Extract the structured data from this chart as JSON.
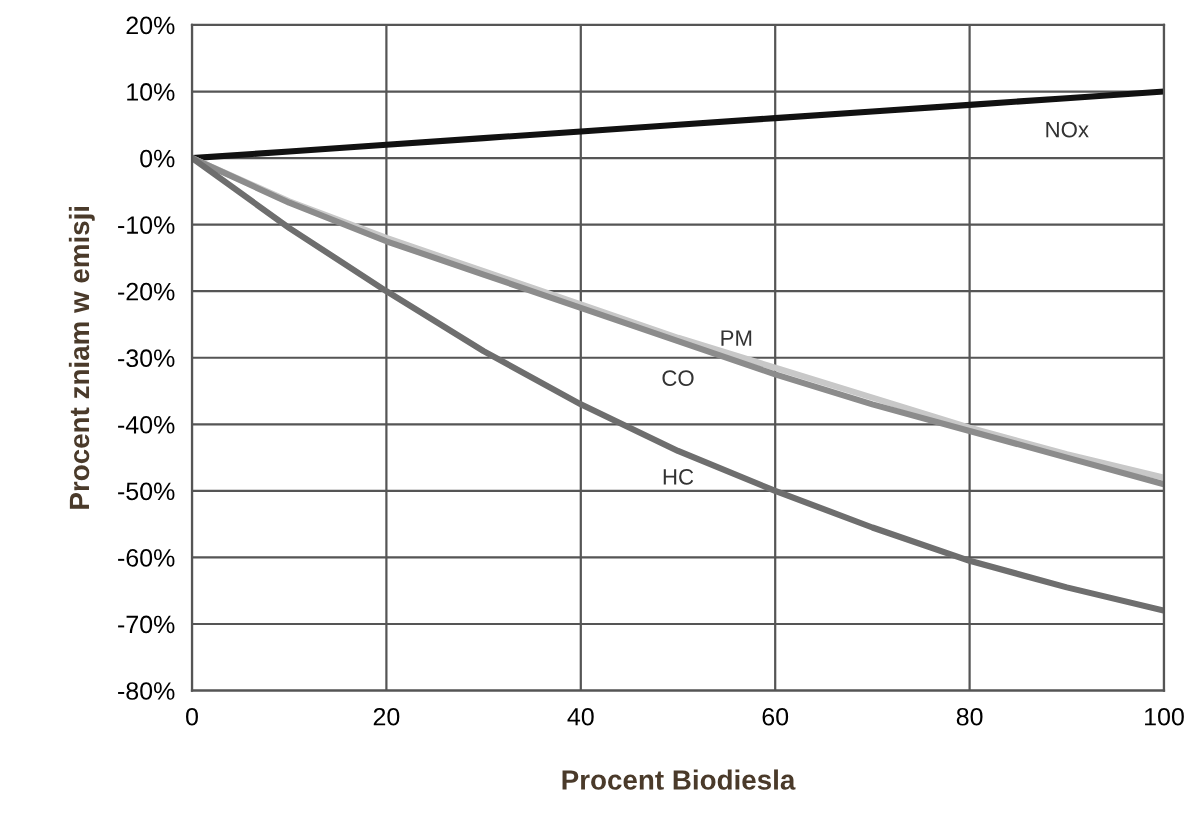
{
  "chart_data": {
    "type": "line",
    "xlabel": "Procent Biodiesla",
    "ylabel": "Procent zniam w emisji",
    "x": [
      0,
      10,
      20,
      30,
      40,
      50,
      60,
      70,
      80,
      90,
      100
    ],
    "series": [
      {
        "name": "NOx",
        "color": "#111111",
        "values": [
          0,
          1,
          2,
          3,
          4,
          5,
          6,
          7,
          8,
          9,
          10
        ]
      },
      {
        "name": "PM",
        "color": "#c8c8c8",
        "values": [
          0,
          -6.5,
          -12,
          -17,
          -22,
          -27,
          -31.5,
          -36,
          -40.5,
          -44.5,
          -48
        ]
      },
      {
        "name": "CO",
        "color": "#8c8c8c",
        "values": [
          0,
          -6.7,
          -12.5,
          -17.5,
          -22.5,
          -27.5,
          -32.5,
          -37,
          -41,
          -45,
          -49
        ]
      },
      {
        "name": "HC",
        "color": "#6e6e6e",
        "values": [
          0,
          -10.5,
          -20,
          -29,
          -37,
          -44,
          -50,
          -55.5,
          -60.5,
          -64.5,
          -68
        ]
      }
    ],
    "xlim": [
      0,
      100
    ],
    "xticks": [
      0,
      20,
      40,
      60,
      80,
      100
    ],
    "ylim": [
      -80,
      20
    ],
    "yticks": [
      {
        "value": -80,
        "label": "-80%"
      },
      {
        "value": -70,
        "label": "-70%"
      },
      {
        "value": -60,
        "label": "-60%"
      },
      {
        "value": -50,
        "label": "-50%"
      },
      {
        "value": -40,
        "label": "-40%"
      },
      {
        "value": -30,
        "label": "-30%"
      },
      {
        "value": -20,
        "label": "-20%"
      },
      {
        "value": -10,
        "label": "-10%"
      },
      {
        "value": 0,
        "label": "0%"
      },
      {
        "value": 10,
        "label": "10%"
      },
      {
        "value": 20,
        "label": "20%"
      }
    ],
    "grid": true,
    "marker": "none",
    "line_style": "solid"
  }
}
